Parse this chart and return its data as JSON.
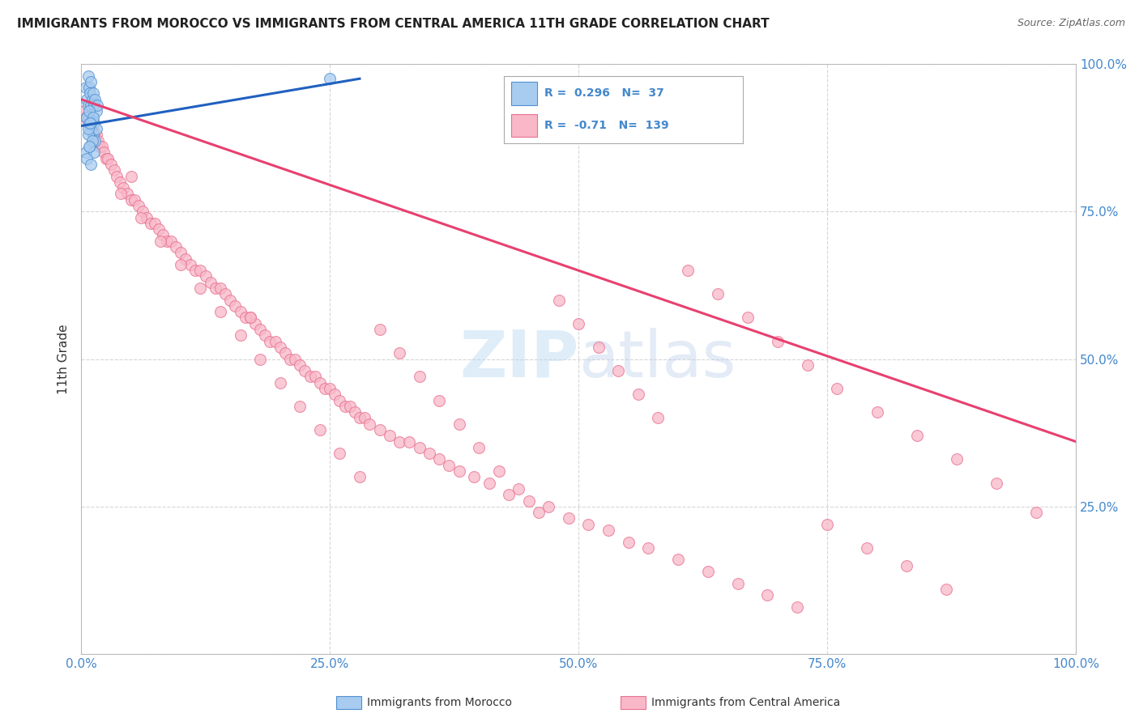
{
  "title": "IMMIGRANTS FROM MOROCCO VS IMMIGRANTS FROM CENTRAL AMERICA 11TH GRADE CORRELATION CHART",
  "source": "Source: ZipAtlas.com",
  "ylabel": "11th Grade",
  "r_morocco": 0.296,
  "n_morocco": 37,
  "r_central": -0.71,
  "n_central": 139,
  "color_morocco_fill": "#a8ccf0",
  "color_morocco_edge": "#5090d0",
  "color_morocco_line": "#2060c0",
  "color_central_fill": "#f8b8c8",
  "color_central_edge": "#e87090",
  "color_central_line": "#e84070",
  "color_watermark": "#b8d8f0",
  "background": "#ffffff",
  "grid_color": "#cccccc",
  "xlim": [
    0.0,
    1.0
  ],
  "ylim": [
    0.0,
    1.0
  ],
  "xticks": [
    0.0,
    0.25,
    0.5,
    0.75,
    1.0
  ],
  "yticks": [
    0.0,
    0.25,
    0.5,
    0.75,
    1.0
  ],
  "xticklabels": [
    "0.0%",
    "25.0%",
    "50.0%",
    "75.0%",
    "100.0%"
  ],
  "yticklabels": [
    "",
    "25.0%",
    "50.0%",
    "75.0%",
    "100.0%"
  ],
  "morocco_x": [
    0.005,
    0.006,
    0.007,
    0.007,
    0.008,
    0.008,
    0.009,
    0.009,
    0.01,
    0.01,
    0.01,
    0.011,
    0.011,
    0.012,
    0.012,
    0.013,
    0.013,
    0.014,
    0.014,
    0.015,
    0.015,
    0.016,
    0.005,
    0.006,
    0.007,
    0.008,
    0.009,
    0.01,
    0.011,
    0.012,
    0.013,
    0.25,
    0.006,
    0.007,
    0.008,
    0.009,
    0.01
  ],
  "morocco_y": [
    0.96,
    0.94,
    0.98,
    0.93,
    0.96,
    0.91,
    0.95,
    0.9,
    0.97,
    0.93,
    0.89,
    0.94,
    0.91,
    0.95,
    0.88,
    0.93,
    0.9,
    0.94,
    0.87,
    0.92,
    0.89,
    0.93,
    0.85,
    0.91,
    0.88,
    0.92,
    0.86,
    0.9,
    0.87,
    0.91,
    0.85,
    0.975,
    0.84,
    0.89,
    0.86,
    0.9,
    0.83
  ],
  "central_x": [
    0.003,
    0.005,
    0.007,
    0.009,
    0.011,
    0.013,
    0.015,
    0.017,
    0.019,
    0.021,
    0.023,
    0.025,
    0.027,
    0.03,
    0.033,
    0.036,
    0.039,
    0.042,
    0.046,
    0.05,
    0.054,
    0.058,
    0.062,
    0.066,
    0.07,
    0.074,
    0.078,
    0.082,
    0.086,
    0.09,
    0.095,
    0.1,
    0.105,
    0.11,
    0.115,
    0.12,
    0.125,
    0.13,
    0.135,
    0.14,
    0.145,
    0.15,
    0.155,
    0.16,
    0.165,
    0.17,
    0.175,
    0.18,
    0.185,
    0.19,
    0.195,
    0.2,
    0.205,
    0.21,
    0.215,
    0.22,
    0.225,
    0.23,
    0.235,
    0.24,
    0.245,
    0.25,
    0.255,
    0.26,
    0.265,
    0.27,
    0.275,
    0.28,
    0.285,
    0.29,
    0.3,
    0.31,
    0.32,
    0.33,
    0.34,
    0.35,
    0.36,
    0.37,
    0.38,
    0.395,
    0.41,
    0.43,
    0.45,
    0.47,
    0.49,
    0.51,
    0.53,
    0.55,
    0.57,
    0.6,
    0.63,
    0.66,
    0.69,
    0.72,
    0.75,
    0.79,
    0.83,
    0.87,
    0.04,
    0.06,
    0.08,
    0.1,
    0.12,
    0.14,
    0.16,
    0.18,
    0.2,
    0.22,
    0.24,
    0.26,
    0.28,
    0.3,
    0.32,
    0.34,
    0.36,
    0.38,
    0.4,
    0.42,
    0.44,
    0.46,
    0.48,
    0.5,
    0.52,
    0.54,
    0.56,
    0.58,
    0.61,
    0.64,
    0.67,
    0.7,
    0.73,
    0.76,
    0.8,
    0.84,
    0.88,
    0.92,
    0.96,
    0.17,
    0.05
  ],
  "central_y": [
    0.92,
    0.91,
    0.9,
    0.9,
    0.89,
    0.88,
    0.88,
    0.87,
    0.86,
    0.86,
    0.85,
    0.84,
    0.84,
    0.83,
    0.82,
    0.81,
    0.8,
    0.79,
    0.78,
    0.77,
    0.77,
    0.76,
    0.75,
    0.74,
    0.73,
    0.73,
    0.72,
    0.71,
    0.7,
    0.7,
    0.69,
    0.68,
    0.67,
    0.66,
    0.65,
    0.65,
    0.64,
    0.63,
    0.62,
    0.62,
    0.61,
    0.6,
    0.59,
    0.58,
    0.57,
    0.57,
    0.56,
    0.55,
    0.54,
    0.53,
    0.53,
    0.52,
    0.51,
    0.5,
    0.5,
    0.49,
    0.48,
    0.47,
    0.47,
    0.46,
    0.45,
    0.45,
    0.44,
    0.43,
    0.42,
    0.42,
    0.41,
    0.4,
    0.4,
    0.39,
    0.38,
    0.37,
    0.36,
    0.36,
    0.35,
    0.34,
    0.33,
    0.32,
    0.31,
    0.3,
    0.29,
    0.27,
    0.26,
    0.25,
    0.23,
    0.22,
    0.21,
    0.19,
    0.18,
    0.16,
    0.14,
    0.12,
    0.1,
    0.08,
    0.22,
    0.18,
    0.15,
    0.11,
    0.78,
    0.74,
    0.7,
    0.66,
    0.62,
    0.58,
    0.54,
    0.5,
    0.46,
    0.42,
    0.38,
    0.34,
    0.3,
    0.55,
    0.51,
    0.47,
    0.43,
    0.39,
    0.35,
    0.31,
    0.28,
    0.24,
    0.6,
    0.56,
    0.52,
    0.48,
    0.44,
    0.4,
    0.65,
    0.61,
    0.57,
    0.53,
    0.49,
    0.45,
    0.41,
    0.37,
    0.33,
    0.29,
    0.24,
    0.57,
    0.81
  ],
  "morocco_line_x": [
    0.0,
    0.28
  ],
  "morocco_line_y": [
    0.895,
    0.975
  ],
  "central_line_x": [
    0.0,
    1.0
  ],
  "central_line_y": [
    0.94,
    0.36
  ]
}
